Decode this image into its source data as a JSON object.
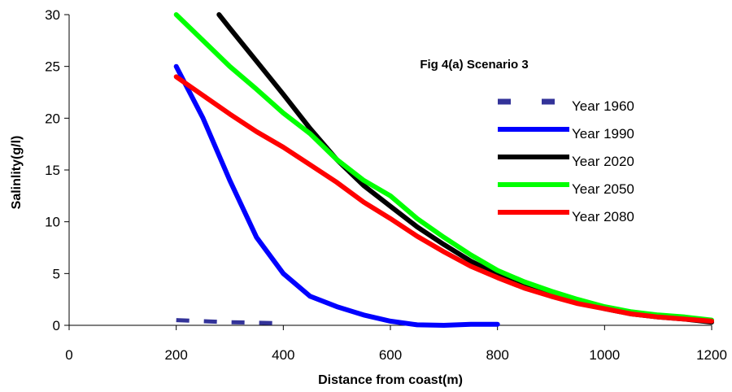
{
  "chart_data": {
    "type": "line",
    "title": "Fig 4(a) Scenario 3",
    "xlabel": "Distance from coast(m)",
    "ylabel": "Salinlity(g/l)",
    "xlim": [
      0,
      1200
    ],
    "ylim": [
      0,
      30
    ],
    "xticks": [
      0,
      200,
      400,
      600,
      800,
      1000,
      1200
    ],
    "yticks": [
      0,
      5,
      10,
      15,
      20,
      25,
      30
    ],
    "grid": false,
    "legend": "right",
    "series": [
      {
        "name": "Year 1960",
        "color": "#333399",
        "dash": true,
        "x": [
          200,
          300,
          400
        ],
        "y": [
          0.5,
          0.3,
          0.2
        ]
      },
      {
        "name": "Year 1990",
        "color": "#0000ff",
        "dash": false,
        "x": [
          200,
          250,
          300,
          350,
          400,
          450,
          500,
          550,
          600,
          650,
          700,
          750,
          800
        ],
        "y": [
          25,
          20,
          14,
          8.5,
          5,
          2.8,
          1.8,
          1,
          0.4,
          0.05,
          0,
          0.1,
          0.1
        ]
      },
      {
        "name": "Year 2020",
        "color": "#000000",
        "dash": false,
        "x": [
          280,
          300,
          350,
          400,
          450,
          500,
          550,
          600,
          650,
          700,
          750,
          800,
          850,
          900,
          950,
          1000,
          1050,
          1100,
          1150,
          1200
        ],
        "y": [
          30,
          28.7,
          25.5,
          22.3,
          19,
          16,
          13.5,
          11.5,
          9.5,
          7.8,
          6.2,
          4.9,
          3.9,
          3.1,
          2.3,
          1.6,
          1.1,
          0.8,
          0.6,
          0.3
        ]
      },
      {
        "name": "Year 2050",
        "color": "#00ff00",
        "dash": false,
        "x": [
          200,
          250,
          300,
          350,
          400,
          450,
          500,
          550,
          600,
          650,
          700,
          750,
          800,
          850,
          900,
          950,
          1000,
          1050,
          1100,
          1150,
          1200
        ],
        "y": [
          30,
          27.5,
          25,
          22.8,
          20.5,
          18.5,
          16,
          14,
          12.5,
          10.3,
          8.5,
          6.8,
          5.3,
          4.2,
          3.3,
          2.5,
          1.8,
          1.3,
          1,
          0.8,
          0.5
        ]
      },
      {
        "name": "Year 2080",
        "color": "#ff0000",
        "dash": false,
        "x": [
          200,
          250,
          300,
          350,
          400,
          450,
          500,
          550,
          600,
          650,
          700,
          750,
          800,
          850,
          900,
          950,
          1000,
          1050,
          1100,
          1150,
          1200
        ],
        "y": [
          24,
          22.2,
          20.4,
          18.7,
          17.2,
          15.5,
          13.8,
          11.9,
          10.3,
          8.6,
          7.1,
          5.7,
          4.6,
          3.6,
          2.8,
          2.1,
          1.6,
          1.1,
          0.8,
          0.6,
          0.4
        ]
      }
    ]
  }
}
